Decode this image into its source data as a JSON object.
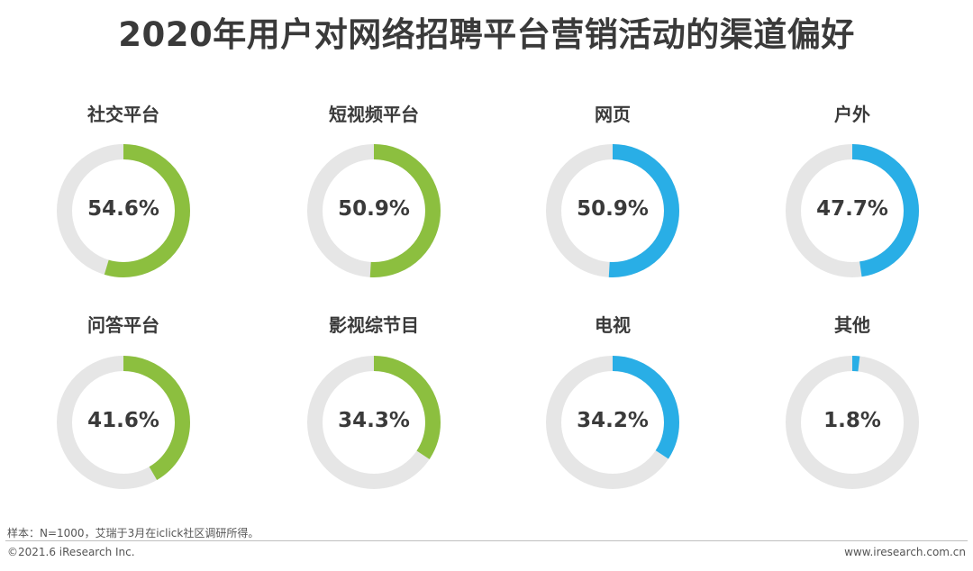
{
  "title": "2020年用户对网络招聘平台营销活动的渠道偏好",
  "chart_data": {
    "type": "donut",
    "title": "2020年用户对网络招聘平台营销活动的渠道偏好",
    "unit": "%",
    "track_color": "#e6e6e6",
    "items": [
      {
        "label": "社交平台",
        "value": 54.6,
        "display": "54.6%",
        "color": "#8cbf3f"
      },
      {
        "label": "短视频平台",
        "value": 50.9,
        "display": "50.9%",
        "color": "#8cbf3f"
      },
      {
        "label": "网页",
        "value": 50.9,
        "display": "50.9%",
        "color": "#29aee6"
      },
      {
        "label": "户外",
        "value": 47.7,
        "display": "47.7%",
        "color": "#29aee6"
      },
      {
        "label": "问答平台",
        "value": 41.6,
        "display": "41.6%",
        "color": "#8cbf3f"
      },
      {
        "label": "影视综节目",
        "value": 34.3,
        "display": "34.3%",
        "color": "#8cbf3f"
      },
      {
        "label": "电视",
        "value": 34.2,
        "display": "34.2%",
        "color": "#29aee6"
      },
      {
        "label": "其他",
        "value": 1.8,
        "display": "1.8%",
        "color": "#29aee6"
      }
    ]
  },
  "footer": {
    "note": "样本：N=1000，艾瑞于3月在iclick社区调研所得。",
    "copyright": "©2021.6 iResearch Inc.",
    "url": "www.iresearch.com.cn"
  }
}
